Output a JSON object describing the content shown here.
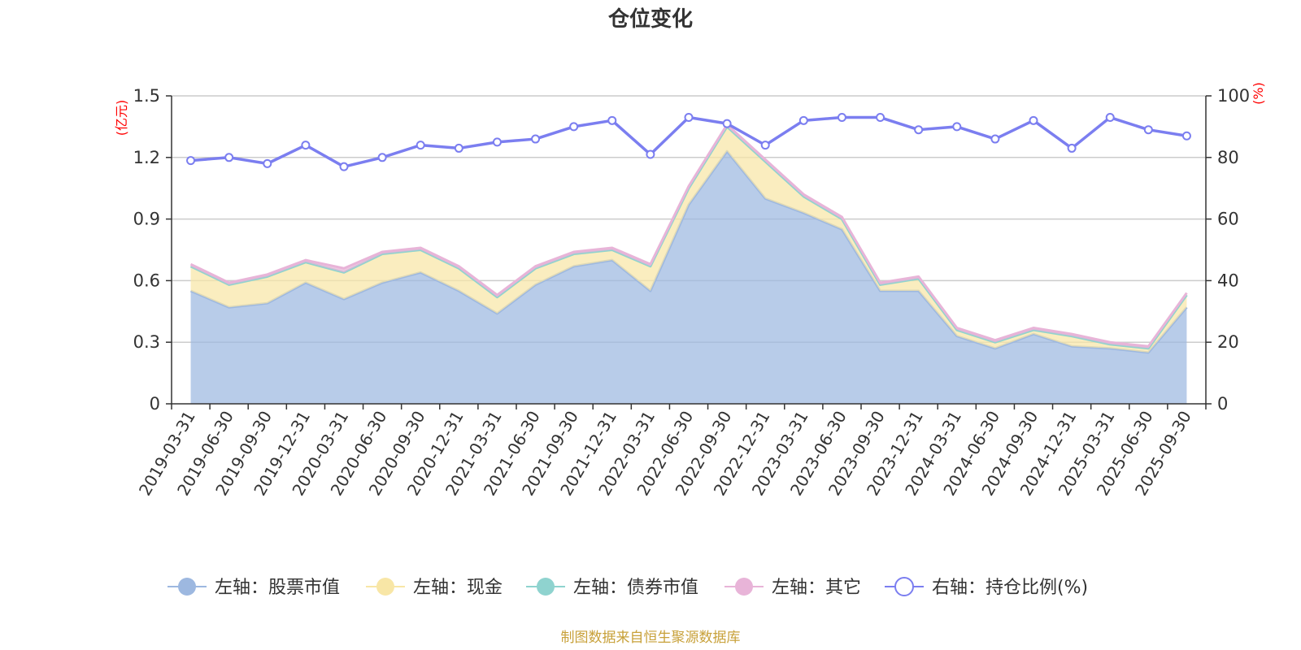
{
  "chart_data": {
    "type": "area",
    "title": "仓位变化",
    "left_axis": {
      "unit": "(亿元)",
      "ylim": [
        0,
        1.5
      ],
      "ticks": [
        "0",
        "0.3",
        "0.6",
        "0.9",
        "1.2",
        "1.5"
      ]
    },
    "right_axis": {
      "unit": "(%)",
      "ylim": [
        0,
        100
      ],
      "ticks": [
        "0",
        "20",
        "40",
        "60",
        "80",
        "100"
      ]
    },
    "categories": [
      "2019-03-31",
      "2019-06-30",
      "2019-09-30",
      "2019-12-31",
      "2020-03-31",
      "2020-06-30",
      "2020-09-30",
      "2020-12-31",
      "2021-03-31",
      "2021-06-30",
      "2021-09-30",
      "2021-12-31",
      "2022-03-31",
      "2022-06-30",
      "2022-09-30",
      "2022-12-31",
      "2023-03-31",
      "2023-06-30",
      "2023-09-30",
      "2023-12-31",
      "2024-03-31",
      "2024-06-30",
      "2024-09-30",
      "2024-12-31",
      "2025-03-31",
      "2025-06-30",
      "2025-09-30"
    ],
    "series": [
      {
        "name": "左轴：股票市值",
        "axis": "left",
        "color": "#9db8e0",
        "values": [
          0.55,
          0.47,
          0.49,
          0.59,
          0.51,
          0.59,
          0.64,
          0.55,
          0.44,
          0.58,
          0.67,
          0.7,
          0.55,
          0.97,
          1.23,
          1.0,
          0.93,
          0.85,
          0.55,
          0.55,
          0.33,
          0.27,
          0.34,
          0.28,
          0.27,
          0.25,
          0.47
        ]
      },
      {
        "name": "左轴：现金",
        "axis": "left",
        "color": "#f8e6a6",
        "values": [
          0.12,
          0.11,
          0.13,
          0.1,
          0.13,
          0.14,
          0.11,
          0.11,
          0.08,
          0.08,
          0.06,
          0.05,
          0.12,
          0.08,
          0.12,
          0.18,
          0.08,
          0.05,
          0.03,
          0.06,
          0.03,
          0.03,
          0.02,
          0.05,
          0.02,
          0.02,
          0.06
        ]
      },
      {
        "name": "左轴：债券市值",
        "axis": "left",
        "color": "#8fd3cf",
        "values": [
          0,
          0,
          0,
          0,
          0,
          0,
          0,
          0,
          0,
          0,
          0,
          0,
          0,
          0,
          0,
          0,
          0,
          0,
          0,
          0,
          0,
          0,
          0,
          0,
          0,
          0,
          0
        ]
      },
      {
        "name": "左轴：其它",
        "axis": "left",
        "color": "#e8b4d8",
        "values": [
          0.01,
          0.01,
          0.01,
          0.01,
          0.02,
          0.01,
          0.01,
          0.01,
          0.01,
          0.01,
          0.01,
          0.01,
          0.01,
          0.01,
          0.01,
          0.01,
          0.01,
          0.01,
          0.01,
          0.01,
          0.01,
          0.01,
          0.01,
          0.01,
          0.01,
          0.01,
          0.01
        ]
      },
      {
        "name": "右轴：持仓比例(%)",
        "axis": "right",
        "color": "#7b7ef0",
        "values": [
          79,
          80,
          78,
          84,
          77,
          80,
          84,
          83,
          85,
          86,
          90,
          92,
          81,
          93,
          91,
          84,
          92,
          93,
          93,
          89,
          90,
          86,
          92,
          83,
          93,
          89,
          87
        ]
      }
    ],
    "source": "制图数据来自恒生聚源数据库"
  }
}
